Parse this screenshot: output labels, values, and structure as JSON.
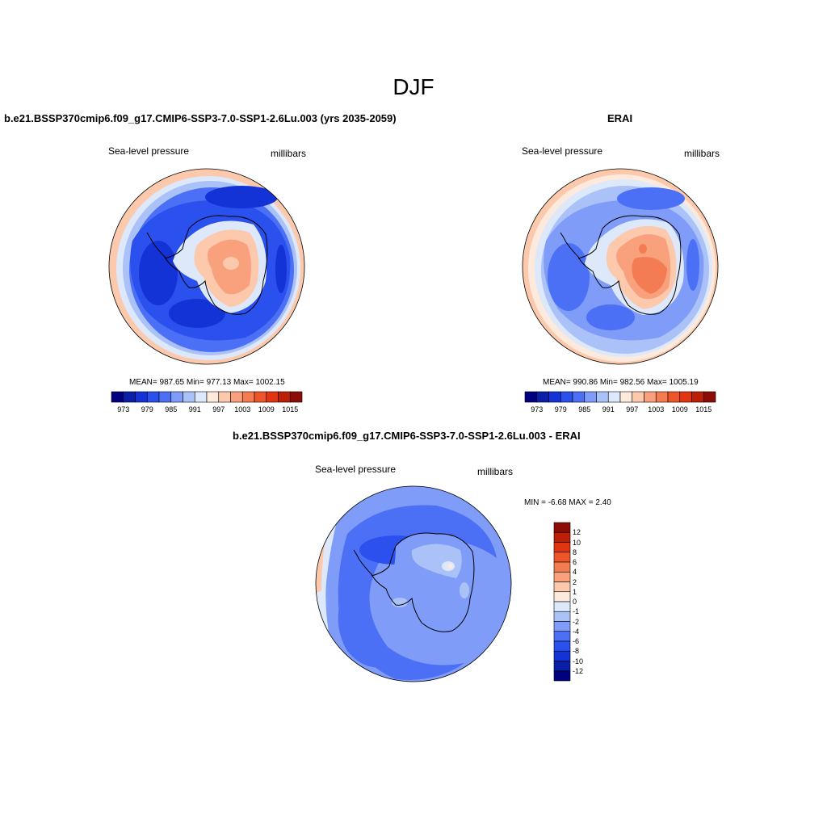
{
  "figure": {
    "title": "DJF"
  },
  "panels": {
    "model": {
      "title": "b.e21.BSSP370cmip6.f09_g17.CMIP6-SSP3-7.0-SSP1-2.6Lu.003 (yrs 2035-2059)",
      "left_label": "Sea-level pressure",
      "right_label": "millibars",
      "stats": "MEAN= 987.65  Min= 977.13  Max= 1002.15"
    },
    "obs": {
      "title": "ERAI",
      "left_label": "Sea-level pressure",
      "right_label": "millibars",
      "stats": "MEAN= 990.86  Min= 982.56  Max= 1005.19"
    },
    "diff": {
      "title": "b.e21.BSSP370cmip6.f09_g17.CMIP6-SSP3-7.0-SSP1-2.6Lu.003 - ERAI",
      "left_label": "Sea-level pressure",
      "right_label": "millibars",
      "stats": "MIN =  -6.68 MAX =   2.40"
    }
  },
  "colorbars": {
    "abs": {
      "colors": [
        "#00007f",
        "#0a1ea8",
        "#1433d6",
        "#2a50ee",
        "#4c70f5",
        "#7f9cf8",
        "#abc2f8",
        "#dde8fb",
        "#fdeadc",
        "#fcc9ad",
        "#f9a07c",
        "#f47c52",
        "#ee5528",
        "#e13412",
        "#bd1e08",
        "#8c0d05"
      ],
      "tick_labels": [
        "973",
        "979",
        "985",
        "991",
        "997",
        "1003",
        "1009",
        "1015"
      ]
    },
    "diff": {
      "colors": [
        "#00007f",
        "#0a1ea8",
        "#1433d6",
        "#2a50ee",
        "#4c70f5",
        "#7f9cf8",
        "#abc2f8",
        "#dde8fb",
        "#fdeadc",
        "#fcc9ad",
        "#f9a07c",
        "#f47c52",
        "#ee5528",
        "#e13412",
        "#bd1e08",
        "#8c0d05"
      ],
      "tick_labels": [
        "12",
        "10",
        "8",
        "6",
        "4",
        "2",
        "1",
        "0",
        "-1",
        "-2",
        "-4",
        "-6",
        "-8",
        "-10",
        "-12"
      ]
    }
  },
  "map_colors": {
    "deep_blue": "#1433d6",
    "blue": "#2a50ee",
    "mid_blue": "#4c70f5",
    "light_blue": "#7f9cf8",
    "pale_blue": "#abc2f8",
    "ice_blue": "#dde8fb",
    "cream": "#fdeadc",
    "peach": "#fcc9ad",
    "salmon": "#f9a07c",
    "orange_red": "#f47c52",
    "coastline": "#000000"
  }
}
